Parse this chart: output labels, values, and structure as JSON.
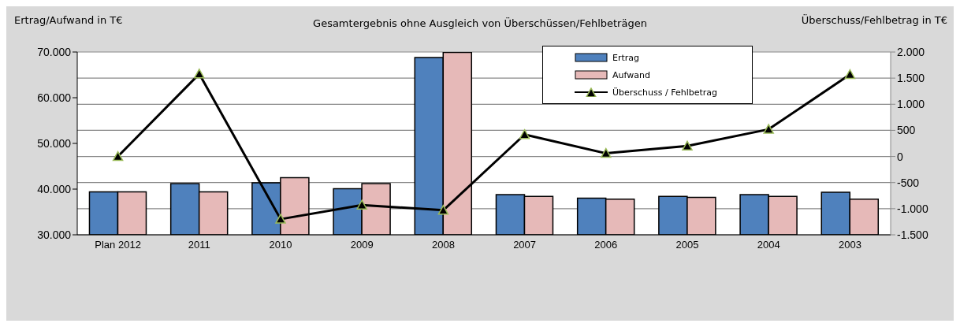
{
  "chart_data": {
    "type": "bar",
    "title": "Gesamtergebnis ohne Ausgleich von Überschüssen/Fehlbeträgen",
    "ylabel": "Ertrag/Aufwand in T€",
    "y2label": "Überschuss/Fehlbetrag in T€",
    "categories": [
      "Plan 2012",
      "2011",
      "2010",
      "2009",
      "2008",
      "2007",
      "2006",
      "2005",
      "2004",
      "2003"
    ],
    "series": [
      {
        "name": "Ertrag",
        "color": "#4f81bd",
        "values": [
          39400,
          41200,
          41400,
          40100,
          68800,
          38800,
          38000,
          38400,
          38800,
          39300
        ]
      },
      {
        "name": "Aufwand",
        "color": "#e6b9b8",
        "values": [
          39400,
          39400,
          42500,
          41200,
          69900,
          38400,
          37800,
          38200,
          38400,
          37800
        ]
      },
      {
        "name": "Überschuss / Fehlbetrag",
        "type": "line",
        "axis": "y2",
        "color": "#000000",
        "marker": "triangle",
        "line_style": "solid",
        "values": [
          0,
          1580,
          -1200,
          -930,
          -1030,
          420,
          60,
          200,
          520,
          1570
        ]
      }
    ],
    "ylim": [
      30000,
      70000
    ],
    "yticks": [
      {
        "value": 30000,
        "label": "30.000"
      },
      {
        "value": 40000,
        "label": "40.000"
      },
      {
        "value": 50000,
        "label": "50.000"
      },
      {
        "value": 60000,
        "label": "60.000"
      },
      {
        "value": 70000,
        "label": "70.000"
      }
    ],
    "y2lim": [
      -1500,
      2000
    ],
    "y2ticks": [
      {
        "value": -1500,
        "label": "-1.500"
      },
      {
        "value": -1000,
        "label": "-1.000"
      },
      -500,
      0,
      500,
      {
        "value": 1000,
        "label": "1.000"
      },
      {
        "value": 1500,
        "label": "1.500"
      },
      {
        "value": 2000,
        "label": "2.000"
      }
    ],
    "grid": "y",
    "legend": "top"
  }
}
